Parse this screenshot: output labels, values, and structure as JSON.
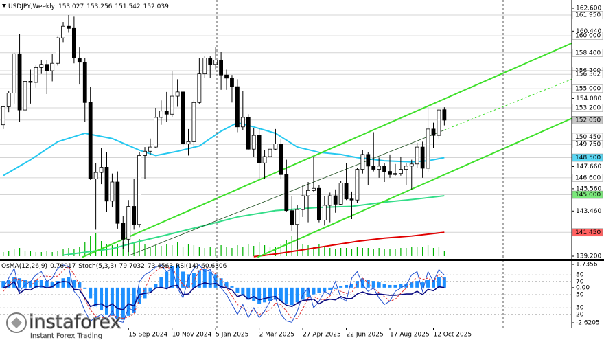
{
  "chart_data": {
    "type": "candlestick",
    "symbol": "USDJPY,Weekly",
    "xlim": [
      -0.6,
      104.4
    ],
    "ylim": [
      139.2,
      162.6
    ],
    "yticks": [
      {
        "value": 162.6,
        "label": "162.600"
      },
      {
        "value": 160.44,
        "label": "160.440"
      },
      {
        "value": 154.08,
        "label": "154.080"
      },
      {
        "value": 147.66,
        "label": "147.660"
      },
      {
        "value": 145.56,
        "label": "145.560"
      },
      {
        "value": 143.46,
        "label": "143.460"
      },
      {
        "value": 139.2,
        "label": "139.200"
      }
    ],
    "levels": [
      {
        "value": 161.95,
        "label": "161.950",
        "color": "#ffffff"
      },
      {
        "value": 160,
        "label": "160.000",
        "color": "#ffffff"
      },
      {
        "value": 158.4,
        "label": "158.400",
        "color": "#ffffff"
      },
      {
        "value": 156.7,
        "label": "156.700",
        "color": "#ffffff"
      },
      {
        "value": 156.362,
        "label": "156.362",
        "color": "#ffffff"
      },
      {
        "value": 155,
        "label": "155.000",
        "color": "#ffffff"
      },
      {
        "value": 153.2,
        "label": "153.200",
        "color": "#ffffff"
      },
      {
        "value": 152.05,
        "label": "152.050",
        "color": "#c8c8c8"
      },
      {
        "value": 150.45,
        "label": "150.450",
        "color": "#ffffff"
      },
      {
        "value": 149.75,
        "label": "149.750",
        "color": "#ffffff"
      },
      {
        "value": 148.5,
        "label": "148.500",
        "color": "#5ad8f5"
      },
      {
        "value": 146.6,
        "label": "146.600",
        "color": "#ffffff"
      },
      {
        "value": 145,
        "label": "145.000",
        "color": "#7be87b"
      },
      {
        "value": 141.45,
        "label": "141.450",
        "color": "#ff6060"
      }
    ],
    "xticks": [
      {
        "value": 23,
        "label": "15 Sep 2024"
      },
      {
        "value": 31,
        "label": "10 Nov 2024"
      },
      {
        "value": 39,
        "label": "5 Jan 2025"
      },
      {
        "value": 47,
        "label": "2 Mar 2025"
      },
      {
        "value": 55,
        "label": "27 Apr 2025"
      },
      {
        "value": 63,
        "label": "22 Jun 2025"
      },
      {
        "value": 71,
        "label": "17 Aug 2025"
      },
      {
        "value": 79,
        "label": "12 Oct 2025"
      }
    ],
    "candles": {
      "open": [
        151.6,
        153.3,
        154.6,
        158.3,
        153.0,
        155.7,
        155.6,
        157.0,
        157.3,
        156.7,
        157.4,
        159.8,
        160.9,
        160.7,
        157.9,
        157.5,
        153.7,
        146.5,
        147.1,
        147.6,
        144.4,
        146.2,
        142.3,
        140.8,
        143.9,
        142.2,
        148.7,
        149.1,
        149.5,
        152.3,
        152.9,
        152.6,
        154.3,
        154.7,
        149.8,
        150.0,
        153.7,
        156.4,
        157.9,
        157.3,
        157.7,
        156.3,
        156.0,
        155.2,
        151.4,
        152.3,
        149.3,
        150.6,
        148.0,
        148.6,
        149.3,
        149.8,
        146.9,
        143.5,
        142.2,
        143.6,
        144.9,
        145.4,
        145.6,
        142.6,
        144.0,
        144.9,
        144.1,
        146.1,
        144.6,
        144.5,
        147.4,
        148.8,
        147.7,
        147.4,
        147.7,
        147.2,
        146.9,
        147.0,
        147.4,
        147.7,
        147.9,
        149.5,
        147.5,
        151.2,
        150.6,
        153.027
      ],
      "high": [
        153.4,
        154.8,
        158.4,
        160.2,
        156.0,
        156.8,
        157.2,
        157.7,
        157.7,
        158.3,
        159.9,
        161.3,
        161.95,
        161.8,
        158.9,
        157.9,
        155.2,
        148.0,
        149.4,
        149.0,
        147.0,
        147.2,
        143.0,
        144.5,
        146.5,
        149.0,
        149.5,
        150.3,
        153.2,
        153.9,
        154.7,
        156.7,
        155.9,
        154.8,
        151.2,
        153.9,
        157.9,
        158.1,
        158.1,
        158.9,
        158.5,
        156.8,
        156.3,
        155.9,
        154.8,
        152.6,
        151.3,
        151.3,
        149.2,
        149.8,
        151.2,
        150.3,
        148.3,
        144.9,
        144.0,
        145.9,
        146.2,
        148.6,
        145.9,
        144.9,
        145.2,
        145.5,
        146.3,
        148.0,
        145.3,
        147.5,
        149.2,
        149.0,
        150.9,
        148.5,
        148.0,
        148.8,
        147.9,
        148.6,
        148.0,
        148.3,
        149.9,
        150.0,
        153.3,
        151.8,
        153.1,
        153.256
      ],
      "low": [
        151.2,
        152.8,
        153.6,
        151.9,
        152.7,
        153.6,
        155.1,
        156.4,
        154.5,
        155.7,
        157.2,
        159.4,
        160.3,
        157.4,
        155.4,
        151.9,
        146.4,
        141.7,
        146.0,
        143.4,
        143.8,
        141.8,
        139.9,
        139.58,
        141.7,
        141.9,
        146.5,
        148.8,
        149.4,
        151.6,
        151.9,
        152.3,
        153.3,
        149.5,
        148.7,
        149.4,
        153.6,
        156.0,
        156.0,
        156.8,
        154.9,
        154.9,
        153.7,
        150.9,
        151.1,
        149.2,
        148.6,
        146.5,
        146.5,
        147.8,
        149.2,
        146.5,
        143.4,
        141.6,
        139.9,
        142.9,
        142.4,
        145.3,
        142.4,
        142.1,
        142.4,
        143.3,
        144.0,
        144.5,
        142.7,
        144.2,
        147.0,
        145.9,
        147.2,
        146.6,
        146.2,
        146.6,
        146.8,
        146.8,
        145.9,
        145.5,
        147.5,
        146.6,
        147.1,
        149.4,
        150.3,
        151.542
      ],
      "close": [
        153.3,
        154.6,
        158.3,
        153.0,
        155.7,
        155.6,
        157.0,
        157.3,
        156.7,
        157.4,
        159.8,
        160.9,
        160.7,
        157.9,
        157.5,
        153.7,
        146.5,
        147.1,
        147.6,
        144.4,
        146.2,
        142.3,
        140.8,
        143.9,
        142.2,
        148.7,
        149.1,
        149.5,
        152.3,
        152.9,
        152.6,
        154.3,
        154.7,
        149.8,
        150.0,
        153.7,
        156.4,
        157.9,
        157.3,
        157.7,
        156.3,
        156.0,
        155.2,
        151.4,
        152.3,
        149.3,
        150.6,
        148.0,
        148.6,
        149.3,
        149.8,
        146.9,
        143.5,
        142.2,
        143.6,
        144.9,
        145.4,
        145.6,
        142.6,
        144.0,
        144.9,
        144.1,
        146.1,
        144.6,
        144.5,
        147.4,
        148.8,
        147.7,
        147.4,
        147.7,
        147.2,
        146.9,
        147.0,
        147.4,
        147.7,
        147.9,
        149.5,
        147.5,
        151.2,
        150.6,
        153.0,
        152.039
      ],
      "up_color": "#ffffff",
      "down_color": "#000000",
      "edge_color": "#000000"
    },
    "volume": {
      "color": "#00b400",
      "values": [
        6,
        7,
        10,
        12,
        8,
        7,
        6,
        6,
        7,
        6,
        8,
        10,
        12,
        11,
        14,
        20,
        30,
        33,
        22,
        18,
        16,
        18,
        20,
        24,
        20,
        25,
        18,
        14,
        16,
        15,
        18,
        16,
        20,
        14,
        18,
        16,
        14,
        12,
        14,
        12,
        16,
        14,
        12,
        16,
        14,
        18,
        15,
        20,
        16,
        14,
        14,
        18,
        24,
        30,
        22,
        18,
        16,
        14,
        18,
        14,
        12,
        11,
        12,
        12,
        10,
        14,
        12,
        12,
        10,
        12,
        10,
        10,
        10,
        12,
        12,
        13,
        14,
        14,
        16,
        12,
        14,
        8
      ]
    },
    "moving_averages": [
      {
        "color": "#25c8f0",
        "x": [
          0,
          5,
          10,
          15,
          20,
          25,
          28,
          32,
          36,
          40,
          43,
          46,
          50,
          54,
          58,
          62,
          65,
          70,
          75,
          78,
          81
        ],
        "values": [
          146.8,
          148.3,
          150.0,
          150.8,
          150.3,
          149.2,
          148.7,
          149.1,
          149.6,
          151.0,
          151.8,
          151.4,
          150.8,
          149.5,
          149.0,
          148.8,
          148.5,
          148.2,
          148.1,
          148.2,
          148.5
        ]
      },
      {
        "color": "#33dd88",
        "x": [
          11,
          20,
          25,
          30,
          37,
          43,
          50,
          58,
          64,
          70,
          76,
          81
        ],
        "values": [
          139.3,
          139.9,
          140.6,
          141.2,
          142.1,
          142.9,
          143.5,
          143.8,
          143.9,
          144.3,
          144.6,
          144.9
        ]
      },
      {
        "color": "#e00000",
        "x": [
          46,
          50,
          55,
          60,
          65,
          70,
          75,
          81
        ],
        "values": [
          139.15,
          139.4,
          139.8,
          140.2,
          140.6,
          140.9,
          141.1,
          141.45
        ]
      }
    ],
    "trendlines": [
      {
        "color": "#3ee02a",
        "dash": false,
        "x": [
          14.5,
          104.4
        ],
        "values": [
          139.1,
          159.3
        ]
      },
      {
        "color": "#3ee02a",
        "dash": false,
        "x": [
          46.7,
          104.4
        ],
        "values": [
          139.1,
          152.2
        ]
      },
      {
        "color": "#1a4a1a",
        "dash": false,
        "x": [
          23.3,
          81
        ],
        "values": [
          139.3,
          151.1
        ]
      },
      {
        "color": "#3ee02a",
        "dash": true,
        "x": [
          81,
          104.4
        ],
        "values": [
          151.1,
          155.9
        ]
      }
    ],
    "osma": {
      "name": "OsMA(12,26,9)",
      "color": "#1e90ff",
      "ylim": [
        -2.6205,
        1.7356
      ],
      "yticks": [
        1.7356,
        {
          "value": 0,
          "label": "0.00"
        },
        -2.6205
      ],
      "values": [
        0.5,
        0.6,
        0.8,
        0.7,
        0.6,
        0.5,
        0.6,
        0.6,
        0.5,
        0.4,
        0.5,
        0.7,
        0.8,
        0.6,
        0.4,
        -0.1,
        -0.8,
        -1.4,
        -1.7,
        -2.0,
        -2.1,
        -2.3,
        -2.4,
        -2.1,
        -1.9,
        -1.2,
        -0.8,
        -0.3,
        0.3,
        0.8,
        1.2,
        1.6,
        1.7,
        1.2,
        1.0,
        1.1,
        1.3,
        1.4,
        1.2,
        1.0,
        0.7,
        0.4,
        0.1,
        -0.4,
        -0.6,
        -0.9,
        -1.0,
        -1.2,
        -1.1,
        -1.0,
        -0.9,
        -1.0,
        -1.2,
        -1.3,
        -1.1,
        -0.9,
        -0.7,
        -0.5,
        -0.4,
        -0.3,
        -0.2,
        -0.1,
        0.1,
        0.2,
        0.3,
        0.5,
        0.7,
        0.6,
        0.5,
        0.4,
        0.3,
        0.2,
        0.2,
        0.3,
        0.3,
        0.4,
        0.5,
        0.4,
        0.6,
        0.6,
        0.8,
        0.76017
      ]
    },
    "oscillator_ylim": [
      0,
      100
    ],
    "oscillator_yticks": [
      80,
      70,
      50,
      30,
      20
    ],
    "stoch": {
      "name": "Stoch(5,3,3)",
      "main_color": "#2050d0",
      "signal_color": "#e03030",
      "main": [
        60,
        75,
        90,
        55,
        65,
        70,
        80,
        85,
        70,
        75,
        90,
        95,
        92,
        55,
        45,
        25,
        10,
        15,
        20,
        12,
        25,
        10,
        8,
        30,
        25,
        70,
        80,
        85,
        92,
        95,
        85,
        90,
        60,
        45,
        75,
        90,
        95,
        85,
        88,
        70,
        60,
        50,
        35,
        20,
        35,
        15,
        30,
        15,
        25,
        40,
        45,
        20,
        10,
        8,
        25,
        50,
        60,
        30,
        40,
        55,
        50,
        70,
        45,
        40,
        75,
        85,
        65,
        55,
        60,
        45,
        35,
        40,
        55,
        60,
        65,
        80,
        85,
        55,
        85,
        70,
        88,
        79.7032
      ],
      "signal": [
        55,
        65,
        75,
        73,
        70,
        63,
        72,
        78,
        78,
        77,
        78,
        87,
        92,
        81,
        64,
        42,
        27,
        17,
        15,
        16,
        19,
        16,
        14,
        16,
        21,
        42,
        58,
        78,
        86,
        91,
        91,
        90,
        78,
        65,
        60,
        70,
        87,
        90,
        89,
        81,
        73,
        60,
        48,
        35,
        30,
        23,
        27,
        20,
        23,
        27,
        37,
        35,
        25,
        13,
        14,
        28,
        45,
        47,
        43,
        42,
        48,
        58,
        55,
        52,
        53,
        67,
        75,
        68,
        60,
        53,
        47,
        40,
        43,
        52,
        60,
        68,
        77,
        73,
        75,
        70,
        81,
        73.4563
      ]
    },
    "rsi": {
      "name": "RSI(14)",
      "color": "#0a0a80",
      "values": [
        60,
        63,
        70,
        52,
        58,
        57,
        62,
        63,
        60,
        62,
        68,
        70,
        69,
        58,
        57,
        45,
        32,
        35,
        36,
        31,
        36,
        29,
        27,
        36,
        33,
        50,
        52,
        53,
        60,
        61,
        59,
        63,
        64,
        50,
        51,
        60,
        65,
        68,
        66,
        67,
        62,
        60,
        57,
        47,
        50,
        43,
        47,
        42,
        44,
        46,
        47,
        40,
        34,
        32,
        37,
        41,
        42,
        43,
        36,
        41,
        43,
        42,
        47,
        44,
        44,
        51,
        54,
        51,
        50,
        51,
        50,
        49,
        49,
        50,
        51,
        51,
        55,
        50,
        58,
        56,
        62,
        60.6306
      ]
    },
    "watermark": {
      "brand": "instaforex",
      "tagline": "Instant Forex Trading"
    }
  }
}
